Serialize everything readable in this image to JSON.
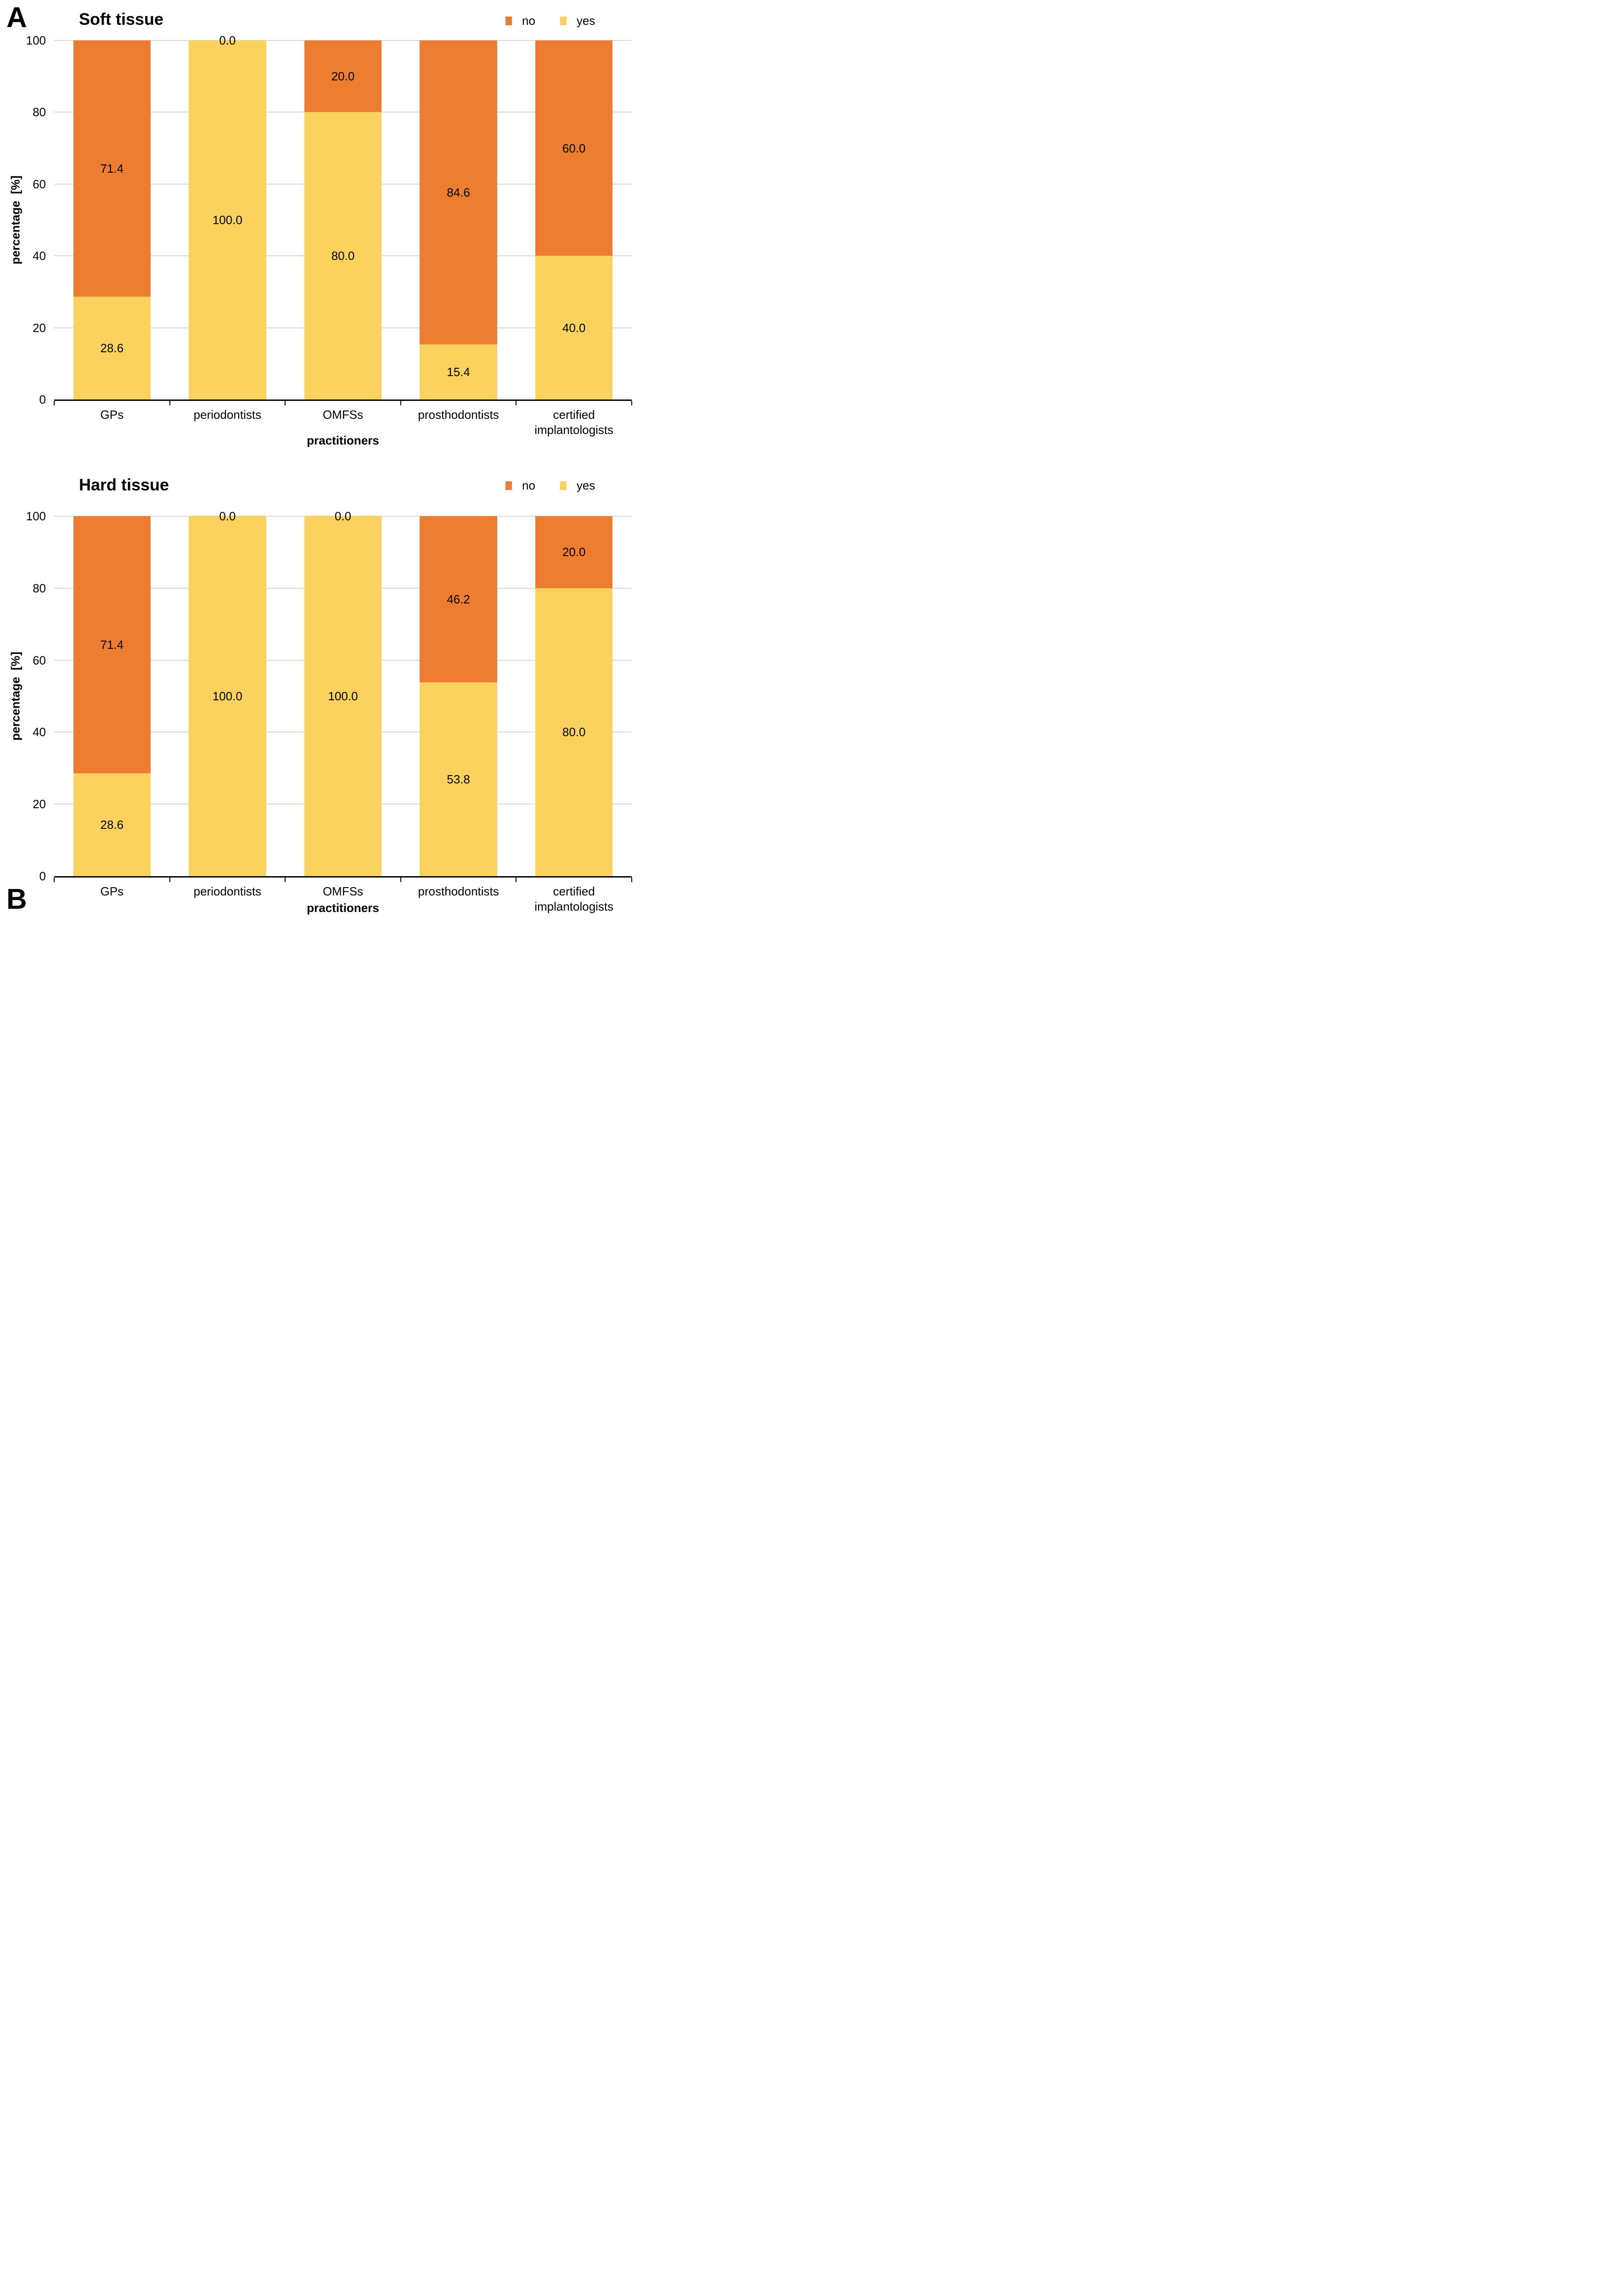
{
  "figure": {
    "panels": [
      {
        "letter": "A",
        "title": "Soft tissue"
      },
      {
        "letter": "B",
        "title": "Hard tissue"
      }
    ],
    "legend": [
      {
        "label": "no",
        "color": "#ED7D31"
      },
      {
        "label": "yes",
        "color": "#FCD25F"
      }
    ],
    "xlabel": "practitioners",
    "ylabel": "percentage  [%]",
    "y_ticks": [
      0,
      20,
      40,
      60,
      80,
      100
    ],
    "colors": {
      "no": "#ED7D31",
      "yes": "#FCD25F",
      "gridline": "#D9D9D9",
      "axis": "#000000"
    }
  },
  "chart_data": [
    {
      "id": "soft-tissue",
      "type": "bar",
      "stacked": true,
      "title": "Soft tissue",
      "categories": [
        "GPs",
        "periodontists",
        "OMFSs",
        "prosthodontists",
        "certified implantologists"
      ],
      "series": [
        {
          "name": "yes",
          "color": "#FCD25F",
          "values": [
            28.6,
            100.0,
            80.0,
            15.4,
            40.0
          ]
        },
        {
          "name": "no",
          "color": "#ED7D31",
          "values": [
            71.4,
            0.0,
            20.0,
            84.6,
            60.0
          ]
        }
      ],
      "xlabel": "practitioners",
      "ylabel": "percentage  [%]",
      "ylim": [
        0,
        100
      ],
      "grid": true,
      "legend_position": "top-right",
      "data_labels": true
    },
    {
      "id": "hard-tissue",
      "type": "bar",
      "stacked": true,
      "title": "Hard tissue",
      "categories": [
        "GPs",
        "periodontists",
        "OMFSs",
        "prosthodontists",
        "certified implantologists"
      ],
      "series": [
        {
          "name": "yes",
          "color": "#FCD25F",
          "values": [
            28.6,
            100.0,
            100.0,
            53.8,
            80.0
          ]
        },
        {
          "name": "no",
          "color": "#ED7D31",
          "values": [
            71.4,
            0.0,
            0.0,
            46.2,
            20.0
          ]
        }
      ],
      "xlabel": "practitioners",
      "ylabel": "percentage  [%]",
      "ylim": [
        0,
        100
      ],
      "grid": true,
      "legend_position": "top-right",
      "data_labels": true
    }
  ]
}
